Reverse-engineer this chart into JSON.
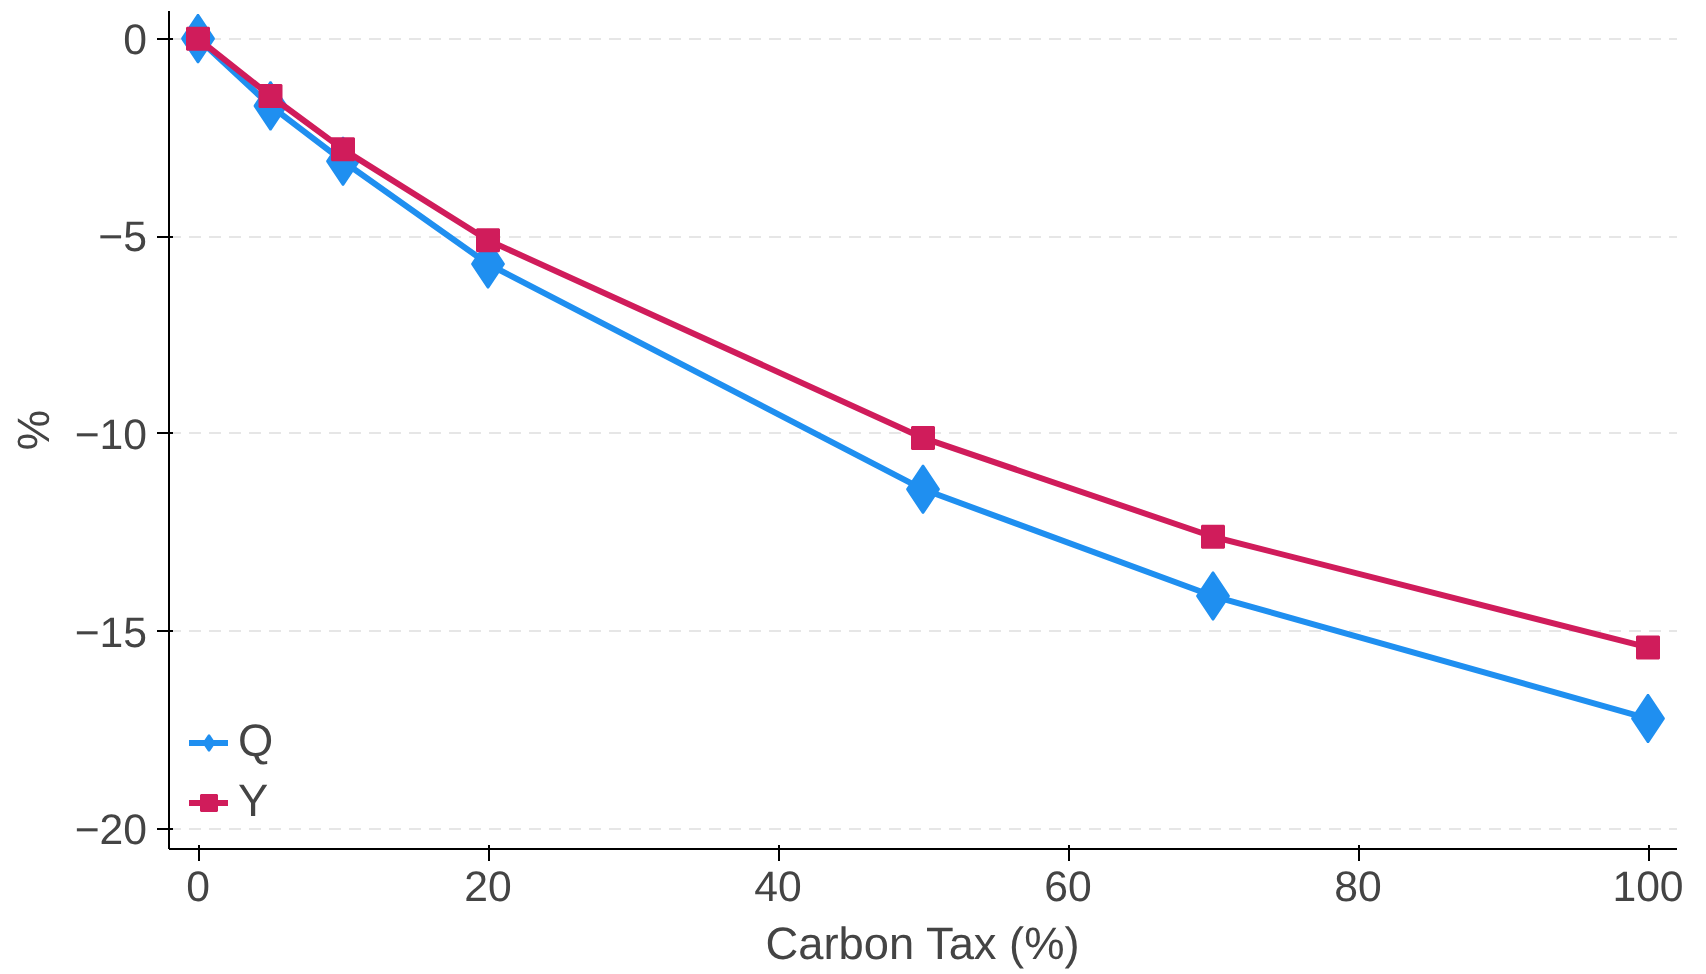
{
  "chart_data": {
    "type": "line",
    "xlabel": "Carbon Tax (%)",
    "ylabel": "%",
    "x": [
      0,
      5,
      10,
      20,
      50,
      70,
      100
    ],
    "series": [
      {
        "name": "Q",
        "color": "#1f8ff0",
        "marker": "diamond",
        "values": [
          0,
          -1.7,
          -3.1,
          -5.7,
          -11.4,
          -14.1,
          -17.2
        ]
      },
      {
        "name": "Y",
        "color": "#d01c5b",
        "marker": "square",
        "values": [
          0,
          -1.45,
          -2.8,
          -5.1,
          -10.1,
          -12.6,
          -15.4
        ]
      }
    ],
    "xlim": [
      -2,
      102
    ],
    "ylim": [
      -20.5,
      0.7
    ],
    "xticks": [
      0,
      20,
      40,
      60,
      80,
      100
    ],
    "yticks": [
      -20,
      -15,
      -10,
      -5,
      0
    ],
    "grid": "y",
    "legend": "bottom left"
  }
}
